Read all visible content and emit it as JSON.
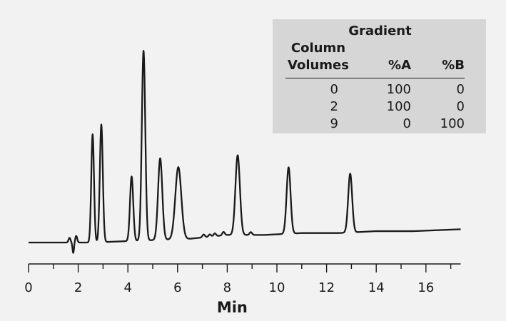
{
  "chart_data": {
    "type": "line",
    "xlabel": "Min",
    "ylabel": "",
    "xlim": [
      0,
      17.4
    ],
    "ylim": [
      0,
      1
    ],
    "x_ticks": [
      0,
      2,
      4,
      6,
      8,
      10,
      12,
      14,
      16
    ],
    "x_minor_step": 1,
    "grid": false,
    "line_color": "#1a1a1a",
    "baseline": [
      [
        0,
        0.0
      ],
      [
        1.6,
        0.0
      ],
      [
        2.5,
        0.0
      ],
      [
        6.5,
        0.02
      ],
      [
        8.0,
        0.04
      ],
      [
        9.5,
        0.04
      ],
      [
        11.0,
        0.05
      ],
      [
        12.5,
        0.05
      ],
      [
        14.0,
        0.06
      ],
      [
        15.5,
        0.06
      ],
      [
        17.4,
        0.07
      ]
    ],
    "disturbance": [
      {
        "x": 1.65,
        "a": 0.025,
        "w": 0.04
      },
      {
        "x": 1.8,
        "a": -0.055,
        "w": 0.03
      },
      {
        "x": 1.92,
        "a": 0.035,
        "w": 0.04
      }
    ],
    "noise": [
      {
        "x": 7.05,
        "a": 0.015,
        "w": 0.05
      },
      {
        "x": 7.3,
        "a": 0.012,
        "w": 0.05
      },
      {
        "x": 7.5,
        "a": 0.015,
        "w": 0.05
      },
      {
        "x": 7.85,
        "a": 0.018,
        "w": 0.05
      },
      {
        "x": 8.95,
        "a": 0.015,
        "w": 0.05
      }
    ],
    "peaks": [
      {
        "rt": 2.58,
        "height": 0.57,
        "width": 0.055
      },
      {
        "rt": 2.93,
        "height": 0.62,
        "width": 0.06
      },
      {
        "rt": 4.15,
        "height": 0.34,
        "width": 0.065
      },
      {
        "rt": 4.63,
        "height": 1.0,
        "width": 0.07
      },
      {
        "rt": 5.3,
        "height": 0.43,
        "width": 0.085
      },
      {
        "rt": 6.03,
        "height": 0.38,
        "width": 0.12
      },
      {
        "rt": 8.42,
        "height": 0.42,
        "width": 0.09
      },
      {
        "rt": 10.47,
        "height": 0.35,
        "width": 0.08
      },
      {
        "rt": 12.95,
        "height": 0.31,
        "width": 0.08
      }
    ]
  },
  "gradient_table": {
    "title": "Gradient",
    "col_header": [
      "Column",
      "Volumes"
    ],
    "a_header": "%A",
    "b_header": "%B",
    "rows": [
      {
        "volumes": "0",
        "a": "100",
        "b": "0"
      },
      {
        "volumes": "2",
        "a": "100",
        "b": "0"
      },
      {
        "volumes": "9",
        "a": "0",
        "b": "100"
      }
    ]
  }
}
